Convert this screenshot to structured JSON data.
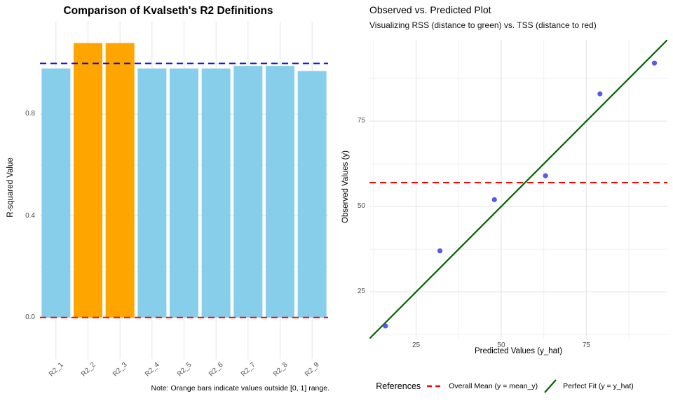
{
  "chart_data": [
    {
      "type": "bar",
      "title": "Comparison of Kvalseth's R2 Definitions",
      "ylabel": "R-squared Value",
      "caption": "Note: Orange bars indicate values outside [0, 1] range.",
      "categories": [
        "R2_1",
        "R2_2",
        "R2_3",
        "R2_4",
        "R2_5",
        "R2_6",
        "R2_7",
        "R2_8",
        "R2_9"
      ],
      "values": [
        0.98,
        1.08,
        1.08,
        0.98,
        0.98,
        0.98,
        0.99,
        0.99,
        0.97
      ],
      "outside_range_indices": [
        1,
        2
      ],
      "bar_color": "#87CEEB",
      "outside_color": "#FFA500",
      "yticks": [
        0.0,
        0.4,
        0.8
      ],
      "ylim": [
        -0.163,
        1.164
      ],
      "grid": true,
      "reference_lines": [
        {
          "y": 1.0,
          "color": "#0000EE",
          "style": "dashed",
          "meaning": "upper bound of [0,1]"
        },
        {
          "y": 0.0,
          "color": "#FF0000",
          "style": "dashed",
          "meaning": "lower bound of [0,1]"
        }
      ]
    },
    {
      "type": "scatter",
      "title": "Observed vs. Predicted Plot",
      "subtitle": "Visualizing RSS (distance to green) vs. TSS (distance to red)",
      "xlabel": "Predicted Values (y_hat)",
      "ylabel": "Observed Values (y)",
      "points": [
        {
          "x": 16,
          "y": 15
        },
        {
          "x": 32,
          "y": 37
        },
        {
          "x": 48,
          "y": 52
        },
        {
          "x": 63,
          "y": 59
        },
        {
          "x": 79,
          "y": 83
        },
        {
          "x": 95,
          "y": 92
        }
      ],
      "point_color": "#4747E3",
      "xticks": [
        25,
        50,
        75
      ],
      "yticks": [
        25,
        50,
        75
      ],
      "xlim": [
        11.3,
        98.8
      ],
      "ylim": [
        11.3,
        98.8
      ],
      "grid": true,
      "lines": [
        {
          "kind": "hline",
          "y": 57,
          "color": "#FF0000",
          "style": "dashed",
          "label": "Overall Mean (y = mean_y)"
        },
        {
          "kind": "abline",
          "slope": 1,
          "intercept": 0,
          "color": "#006400",
          "style": "solid",
          "label": "Perfect Fit (y = y_hat)"
        }
      ],
      "legend": {
        "title": "References",
        "position": "bottom",
        "items": [
          {
            "label": "Overall Mean (y = mean_y)",
            "color": "#FF0000",
            "line_style": "dashed"
          },
          {
            "label": "Perfect Fit (y = y_hat)",
            "color": "#006400",
            "line_style": "solid"
          }
        ]
      }
    }
  ]
}
